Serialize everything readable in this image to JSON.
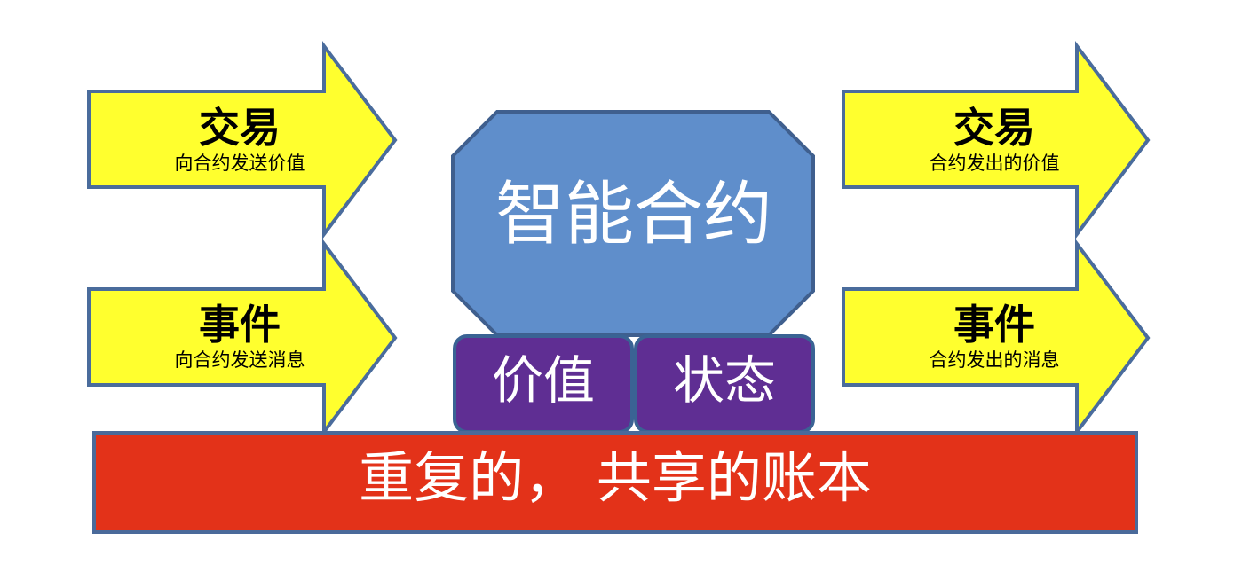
{
  "left_arrows": [
    {
      "title": "交易",
      "subtitle": "向合约发送价值"
    },
    {
      "title": "事件",
      "subtitle": "向合约发送消息"
    }
  ],
  "right_arrows": [
    {
      "title": "交易",
      "subtitle": "合约发出的价值"
    },
    {
      "title": "事件",
      "subtitle": "合约发出的消息"
    }
  ],
  "contract": {
    "label": "智能合约"
  },
  "cells": [
    {
      "label": "价值"
    },
    {
      "label": "状态"
    }
  ],
  "ledger": {
    "label": "重复的， 共享的账本"
  },
  "colors": {
    "arrow_fill": "#ffff2e",
    "arrow_stroke": "#4a6c9c",
    "contract_fill": "#5f8ecb",
    "contract_stroke": "#3f5f8e",
    "cell_fill": "#5f2e93",
    "cell_stroke": "#3a6394",
    "ledger_fill": "#e33219",
    "ledger_stroke": "#4a6a9a"
  }
}
